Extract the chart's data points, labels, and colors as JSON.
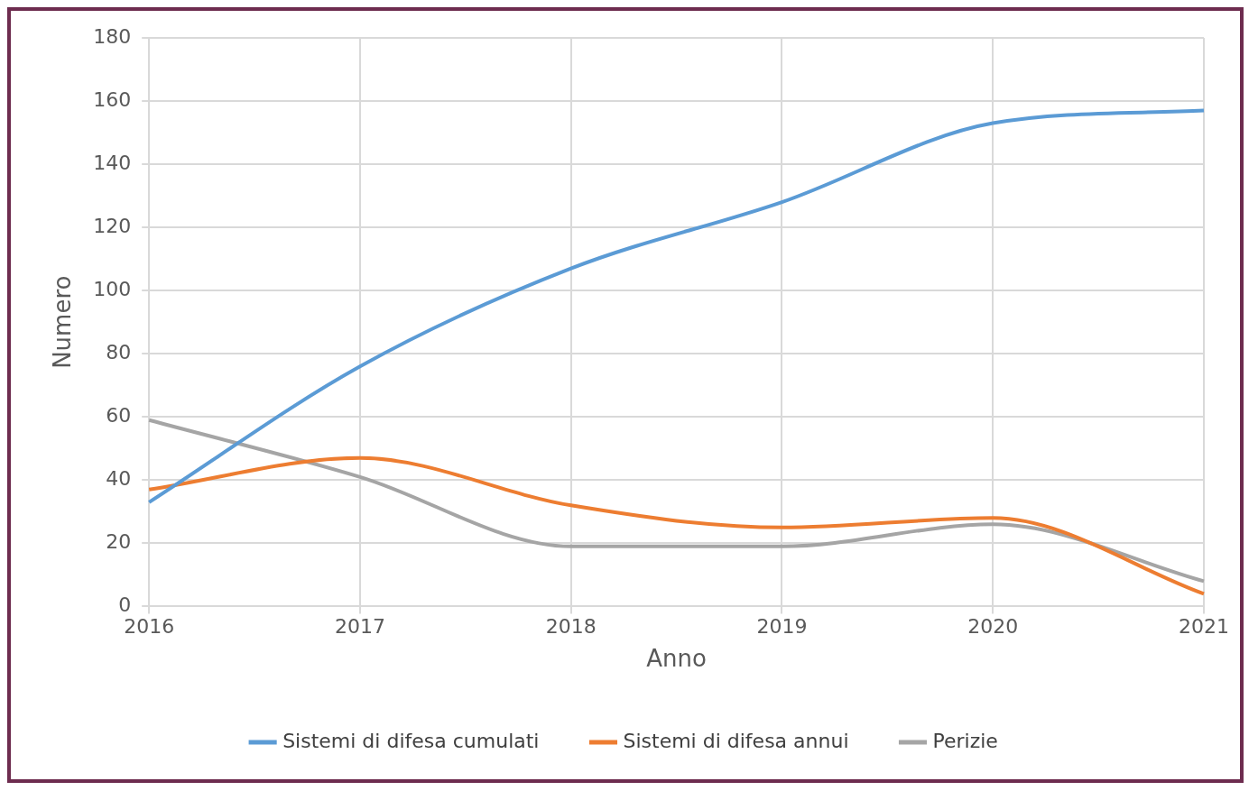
{
  "chart_data": {
    "type": "line",
    "xlabel": "Anno",
    "ylabel": "Numero",
    "categories": [
      "2016",
      "2017",
      "2018",
      "2019",
      "2020",
      "2021"
    ],
    "series": [
      {
        "name": "Sistemi di difesa cumulati",
        "color": "#5b9bd5",
        "values": [
          33,
          76,
          107,
          128,
          153,
          157
        ]
      },
      {
        "name": "Sistemi di difesa annui",
        "color": "#ed7d31",
        "values": [
          37,
          47,
          32,
          25,
          28,
          4
        ]
      },
      {
        "name": "Perizie",
        "color": "#a5a5a5",
        "values": [
          59,
          41,
          19,
          19,
          26,
          8
        ]
      }
    ],
    "ylim": [
      0,
      180
    ],
    "yticks": [
      0,
      20,
      40,
      60,
      80,
      100,
      120,
      140,
      160,
      180
    ],
    "grid": true,
    "legend": "bottom",
    "marker": "none",
    "line_style": "solid"
  }
}
